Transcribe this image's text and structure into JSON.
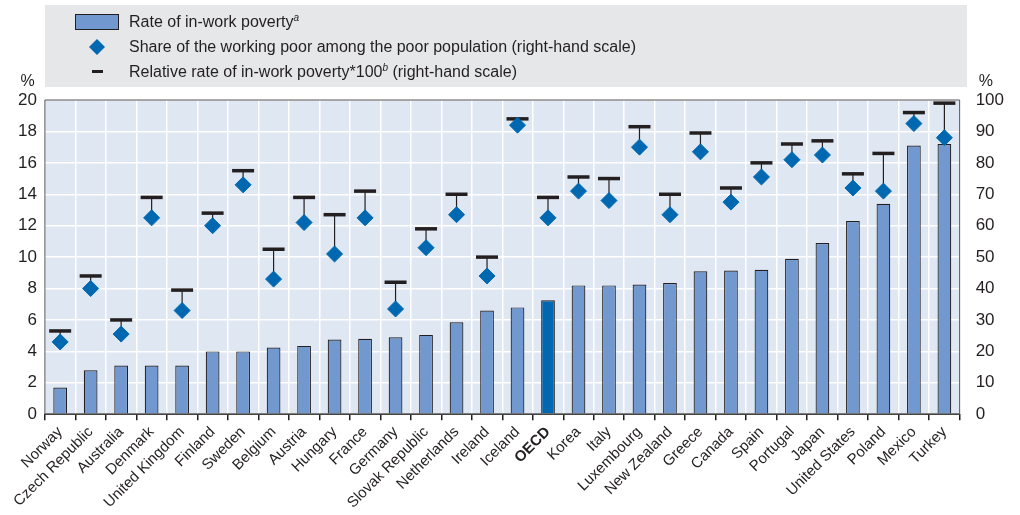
{
  "chart_data": {
    "type": "bar",
    "ylabel": "%",
    "y2label": "%",
    "categories": [
      "Norway",
      "Czech Republic",
      "Australia",
      "Denmark",
      "United Kingdom",
      "Finland",
      "Sweden",
      "Belgium",
      "Austria",
      "Hungary",
      "France",
      "Germany",
      "Slovak Republic",
      "Netherlands",
      "Ireland",
      "Iceland",
      "OECD",
      "Korea",
      "Italy",
      "Luxembourg",
      "New Zealand",
      "Greece",
      "Canada",
      "Spain",
      "Portugal",
      "Japan",
      "United States",
      "Poland",
      "Mexico",
      "Turkey"
    ],
    "series": [
      {
        "name": "Rate of in-work poverty$^{a}$",
        "color": "#7199d0",
        "colors": [
          "#7199d0",
          "#7199d0",
          "#7199d0",
          "#7199d0",
          "#7199d0",
          "#7199d0",
          "#7199d0",
          "#7199d0",
          "#7199d0",
          "#7199d0",
          "#7199d0",
          "#7199d0",
          "#7199d0",
          "#7199d0",
          "#7199d0",
          "#7199d0",
          "#0068b0",
          "#7199d0",
          "#7199d0",
          "#7199d0",
          "#7199d0",
          "#7199d0",
          "#7199d0",
          "#7199d0",
          "#7199d0",
          "#7199d0",
          "#7199d0",
          "#7199d0",
          "#7199d0",
          "#7199d0"
        ],
        "values": [
          1.7,
          2.8,
          3.1,
          3.1,
          3.1,
          4.0,
          4.0,
          4.25,
          4.35,
          4.75,
          4.8,
          4.9,
          5.05,
          5.85,
          6.6,
          6.8,
          7.25,
          8.2,
          8.2,
          8.25,
          8.35,
          9.1,
          9.15,
          9.2,
          9.9,
          10.9,
          12.3,
          13.4,
          17.1,
          17.2
        ]
      },
      {
        "name": "Share of the working poor among the poor population (right-hand scale)",
        "type": "scatter",
        "axis": "y2",
        "marker": "diamond",
        "color": "#0068b0",
        "values": [
          23,
          40,
          25.5,
          62.5,
          33,
          60,
          73,
          43,
          61,
          51,
          62.5,
          33.5,
          53,
          63.5,
          44,
          92,
          62.5,
          71,
          68,
          85,
          63.5,
          83.5,
          67.5,
          75.5,
          81,
          82.5,
          72,
          71,
          92.5,
          88
        ],
        "errors": [
          [
            23,
            26.5
          ],
          [
            40,
            44
          ],
          [
            25.5,
            30
          ],
          [
            62.5,
            69
          ],
          [
            33,
            39.5
          ],
          [
            60,
            64
          ],
          [
            73,
            77.5
          ],
          [
            43,
            52.5
          ],
          [
            61,
            69
          ],
          [
            51,
            63.5
          ],
          [
            62.5,
            71
          ],
          [
            33.5,
            42
          ],
          [
            53,
            59
          ],
          [
            63.5,
            70
          ],
          [
            44,
            50
          ],
          [
            92,
            94
          ],
          [
            62.5,
            69
          ],
          [
            71,
            75.5
          ],
          [
            68,
            75
          ],
          [
            85,
            91.5
          ],
          [
            63.5,
            70
          ],
          [
            83.5,
            89.5
          ],
          [
            67.5,
            72
          ],
          [
            75.5,
            80
          ],
          [
            81,
            86
          ],
          [
            82.5,
            87
          ],
          [
            72,
            76.5
          ],
          [
            71,
            83
          ],
          [
            92.5,
            96
          ],
          [
            88,
            99
          ]
        ]
      }
    ],
    "annotations": [
      "Relative rate of in-work poverty*100$^{b}$ (right-hand scale)"
    ],
    "ylim": [
      0,
      20
    ],
    "yticks": [
      0,
      2,
      4,
      6,
      8,
      10,
      12,
      14,
      16,
      18,
      20
    ],
    "y2lim": [
      0,
      100
    ],
    "y2ticks": [
      0,
      10,
      20,
      30,
      40,
      50,
      60,
      70,
      80,
      90,
      100
    ],
    "grid": true,
    "legend": "top"
  }
}
